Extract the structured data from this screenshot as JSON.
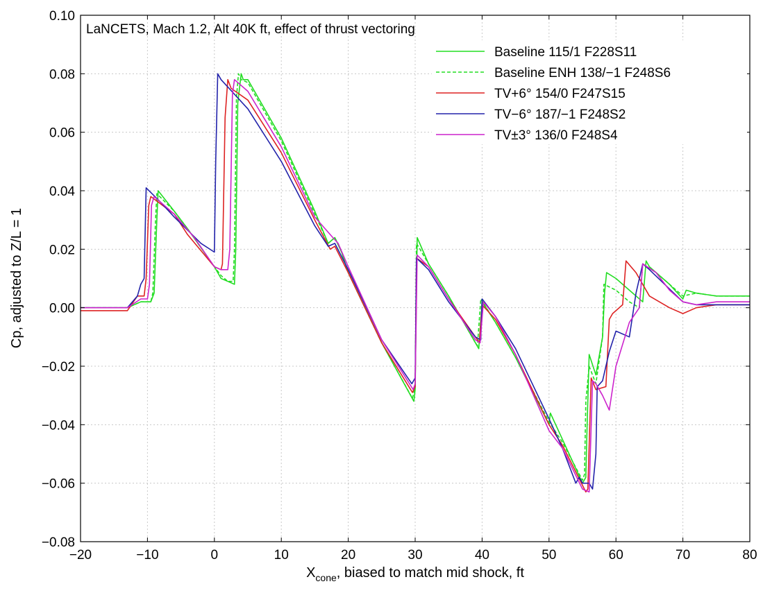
{
  "chart_data": {
    "type": "line",
    "title": "LaNCETS, Mach 1.2, Alt 40K ft, effect of thrust vectoring",
    "xlabel_main": "X",
    "xlabel_sub": "cone",
    "xlabel_rest": ", biased to match mid shock, ft",
    "ylabel": "Cp, adjusted to Z/L = 1",
    "xlim": [
      -20,
      80
    ],
    "ylim": [
      -0.08,
      0.1
    ],
    "xticks": [
      -20,
      -10,
      0,
      10,
      20,
      30,
      40,
      50,
      60,
      70,
      80
    ],
    "xtick_labels": [
      "−20",
      "−10",
      "0",
      "10",
      "20",
      "30",
      "40",
      "50",
      "60",
      "70",
      "80"
    ],
    "yticks": [
      -0.08,
      -0.06,
      -0.04,
      -0.02,
      0.0,
      0.02,
      0.04,
      0.06,
      0.08,
      0.1
    ],
    "ytick_labels": [
      "−0.08",
      "−0.06",
      "−0.04",
      "−0.02",
      "0.00",
      "0.02",
      "0.04",
      "0.06",
      "0.08",
      "0.10"
    ],
    "grid": true,
    "legend_position": "top-right",
    "series": [
      {
        "name": "Baseline 115/1 F228S11",
        "color": "#22dd22",
        "dash": "solid",
        "x": [
          -20,
          -13,
          -11,
          -9.5,
          -9,
          -8.6,
          -8.4,
          -6,
          -4,
          0,
          1,
          2,
          3,
          3.2,
          3.5,
          4,
          4.3,
          5,
          10,
          15,
          17,
          18,
          19,
          20,
          25,
          29.8,
          30,
          30.3,
          32,
          35,
          39,
          39.5,
          40,
          42,
          45,
          50,
          50.2,
          52,
          55,
          55.5,
          55.7,
          56,
          57,
          58,
          58.3,
          58.6,
          60,
          62,
          64,
          64.5,
          65,
          68,
          70,
          70.5,
          72,
          75,
          80
        ],
        "y": [
          0.0,
          0.0,
          0.002,
          0.002,
          0.005,
          0.03,
          0.04,
          0.033,
          0.027,
          0.014,
          0.01,
          0.009,
          0.008,
          0.02,
          0.07,
          0.08,
          0.078,
          0.078,
          0.058,
          0.033,
          0.022,
          0.024,
          0.019,
          0.012,
          -0.012,
          -0.032,
          -0.028,
          0.024,
          0.015,
          0.004,
          -0.012,
          -0.014,
          0.002,
          -0.005,
          -0.017,
          -0.04,
          -0.036,
          -0.045,
          -0.06,
          -0.058,
          -0.04,
          -0.016,
          -0.023,
          -0.01,
          0.005,
          0.012,
          0.01,
          0.006,
          0.002,
          0.016,
          0.014,
          0.008,
          0.003,
          0.006,
          0.005,
          0.004,
          0.004
        ]
      },
      {
        "name": "Baseline ENH 138/−1 F248S6",
        "color": "#22dd22",
        "dash": "dashed",
        "x": [
          -20,
          -13,
          -11,
          -9.5,
          -9.2,
          -8.8,
          -8.6,
          -6,
          -4,
          0,
          1,
          2,
          2.8,
          3,
          3.3,
          3.6,
          4,
          5,
          10,
          15,
          17,
          18,
          19,
          20,
          25,
          29.6,
          30,
          30.2,
          32,
          35,
          39,
          39.3,
          39.8,
          42,
          45,
          50,
          52,
          55,
          55.3,
          55.5,
          56,
          57,
          58,
          58.2,
          60,
          62,
          63.5,
          64,
          66,
          68,
          70,
          72,
          75,
          80
        ],
        "y": [
          0.0,
          0.0,
          0.002,
          0.002,
          0.005,
          0.03,
          0.039,
          0.033,
          0.027,
          0.014,
          0.011,
          0.009,
          0.009,
          0.02,
          0.072,
          0.08,
          0.078,
          0.077,
          0.057,
          0.032,
          0.022,
          0.024,
          0.019,
          0.012,
          -0.012,
          -0.031,
          -0.027,
          0.022,
          0.015,
          0.004,
          -0.012,
          -0.013,
          0.003,
          -0.005,
          -0.017,
          -0.039,
          -0.046,
          -0.059,
          -0.057,
          -0.032,
          -0.02,
          -0.026,
          -0.01,
          0.008,
          0.006,
          0.002,
          0.0,
          0.015,
          0.012,
          0.008,
          0.004,
          0.005,
          0.004,
          0.004
        ]
      },
      {
        "name": "TV+6° 154/0 F247S15",
        "color": "#dd2222",
        "dash": "solid",
        "x": [
          -20,
          -13,
          -11.5,
          -10.5,
          -10.2,
          -9.8,
          -9.5,
          -6,
          -4,
          0,
          1,
          1.2,
          1.6,
          2,
          2.5,
          5,
          10,
          15,
          17.3,
          18,
          20,
          25,
          29.6,
          30,
          30.2,
          32,
          35,
          39,
          39.6,
          40,
          42,
          45,
          50,
          52,
          55.5,
          55.8,
          56.3,
          57,
          58.5,
          59,
          59.5,
          61,
          61.5,
          63,
          65,
          68,
          70,
          72,
          75,
          80
        ],
        "y": [
          -0.001,
          -0.001,
          0.004,
          0.004,
          0.01,
          0.035,
          0.038,
          0.032,
          0.025,
          0.014,
          0.013,
          0.015,
          0.065,
          0.078,
          0.075,
          0.071,
          0.053,
          0.03,
          0.02,
          0.021,
          0.012,
          -0.012,
          -0.029,
          -0.027,
          0.017,
          0.014,
          0.003,
          -0.01,
          -0.012,
          0.001,
          -0.004,
          -0.016,
          -0.04,
          -0.047,
          -0.063,
          -0.062,
          -0.024,
          -0.028,
          -0.027,
          -0.004,
          -0.002,
          0.001,
          0.016,
          0.012,
          0.004,
          0.0,
          -0.002,
          0.0,
          0.001,
          0.001
        ]
      },
      {
        "name": "TV−6° 187/−1 F248S2",
        "color": "#2222aa",
        "dash": "solid",
        "x": [
          -20,
          -13,
          -11.5,
          -11,
          -10.5,
          -10.2,
          -8,
          -6,
          -2,
          0,
          0.2,
          0.5,
          1,
          5,
          10,
          15,
          17,
          18,
          20,
          25,
          29.5,
          30,
          30.2,
          32,
          35,
          39,
          39.8,
          40,
          42,
          45,
          50,
          52,
          54,
          54.5,
          55,
          56,
          56.5,
          57,
          57.2,
          58,
          59,
          60,
          62,
          63,
          64,
          65,
          70,
          72,
          75,
          80
        ],
        "y": [
          0.0,
          0.0,
          0.004,
          0.008,
          0.01,
          0.041,
          0.036,
          0.031,
          0.022,
          0.019,
          0.05,
          0.08,
          0.078,
          0.068,
          0.05,
          0.028,
          0.021,
          0.022,
          0.013,
          -0.011,
          -0.026,
          -0.024,
          0.017,
          0.013,
          0.002,
          -0.01,
          -0.011,
          0.003,
          -0.003,
          -0.014,
          -0.038,
          -0.048,
          -0.06,
          -0.058,
          -0.06,
          -0.06,
          -0.062,
          -0.05,
          -0.027,
          -0.025,
          -0.015,
          -0.008,
          -0.01,
          0.005,
          0.015,
          0.013,
          0.002,
          0.001,
          0.001,
          0.001
        ]
      },
      {
        "name": "TV±3° 136/0 F248S4",
        "color": "#cc22cc",
        "dash": "solid",
        "x": [
          -20,
          -13,
          -11,
          -10,
          -9.7,
          -9.4,
          -9,
          -6,
          -3,
          0,
          1,
          2,
          2.3,
          2.7,
          3,
          5,
          10,
          15,
          17.7,
          18.5,
          20,
          25,
          29.7,
          30,
          30.3,
          32,
          35,
          39,
          39.7,
          40.2,
          42,
          45,
          50,
          52,
          55,
          56,
          56.5,
          57,
          58,
          59,
          60,
          62,
          63.5,
          64,
          66,
          68,
          70,
          72,
          75,
          80
        ],
        "y": [
          0.0,
          0.0,
          0.003,
          0.003,
          0.008,
          0.035,
          0.038,
          0.032,
          0.024,
          0.014,
          0.013,
          0.013,
          0.02,
          0.073,
          0.078,
          0.074,
          0.055,
          0.031,
          0.024,
          0.022,
          0.014,
          -0.011,
          -0.028,
          -0.026,
          0.018,
          0.014,
          0.003,
          -0.011,
          -0.012,
          0.002,
          -0.003,
          -0.016,
          -0.042,
          -0.048,
          -0.062,
          -0.063,
          -0.025,
          -0.026,
          -0.03,
          -0.035,
          -0.02,
          -0.005,
          0.0,
          0.015,
          0.012,
          0.006,
          0.002,
          0.001,
          0.002,
          0.002
        ]
      }
    ]
  }
}
